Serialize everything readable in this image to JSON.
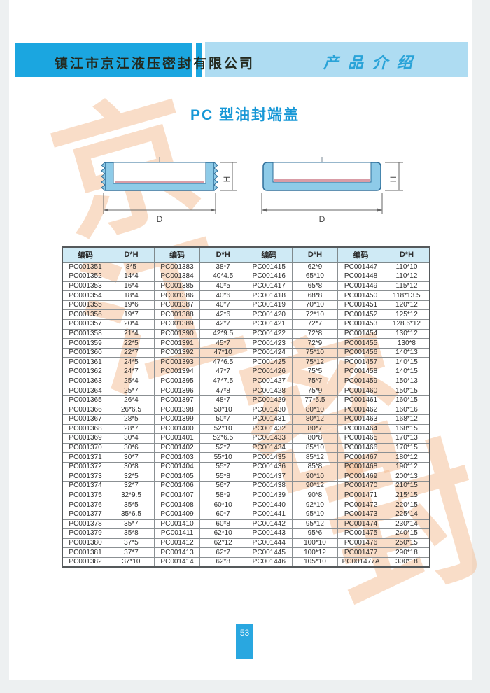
{
  "header": {
    "company": "镇江市京江液压密封有限公司",
    "section": "产品介绍"
  },
  "title": "PC 型油封端盖",
  "watermark": {
    "chars": [
      "京",
      "江",
      "密",
      "封"
    ]
  },
  "diagram": {
    "d_label": "D",
    "h_label": "H"
  },
  "table": {
    "columns": [
      "编码",
      "D*H",
      "编码",
      "D*H",
      "编码",
      "D*H",
      "编码",
      "D*H"
    ],
    "rows": [
      [
        "PC001351",
        "8*5",
        "PC001383",
        "38*7",
        "PC001415",
        "62*9",
        "PC001447",
        "110*10"
      ],
      [
        "PC001352",
        "14*4",
        "PC001384",
        "40*4.5",
        "PC001416",
        "65*10",
        "PC001448",
        "110*12"
      ],
      [
        "PC001353",
        "16*4",
        "PC001385",
        "40*5",
        "PC001417",
        "65*8",
        "PC001449",
        "115*12"
      ],
      [
        "PC001354",
        "18*4",
        "PC001386",
        "40*6",
        "PC001418",
        "68*8",
        "PC001450",
        "118*13.5"
      ],
      [
        "PC001355",
        "19*6",
        "PC001387",
        "40*7",
        "PC001419",
        "70*10",
        "PC001451",
        "120*12"
      ],
      [
        "PC001356",
        "19*7",
        "PC001388",
        "42*6",
        "PC001420",
        "72*10",
        "PC001452",
        "125*12"
      ],
      [
        "PC001357",
        "20*4",
        "PC001389",
        "42*7",
        "PC001421",
        "72*7",
        "PC001453",
        "128.6*12"
      ],
      [
        "PC001358",
        "21*4",
        "PC001390",
        "42*9.5",
        "PC001422",
        "72*8",
        "PC001454",
        "130*12"
      ],
      [
        "PC001359",
        "22*5",
        "PC001391",
        "45*7",
        "PC001423",
        "72*9",
        "PC001455",
        "130*8"
      ],
      [
        "PC001360",
        "22*7",
        "PC001392",
        "47*10",
        "PC001424",
        "75*10",
        "PC001456",
        "140*13"
      ],
      [
        "PC001361",
        "24*5",
        "PC001393",
        "47*6.5",
        "PC001425",
        "75*12",
        "PC001457",
        "140*15"
      ],
      [
        "PC001362",
        "24*7",
        "PC001394",
        "47*7",
        "PC001426",
        "75*5",
        "PC001458",
        "140*15"
      ],
      [
        "PC001363",
        "25*4",
        "PC001395",
        "47*7.5",
        "PC001427",
        "75*7",
        "PC001459",
        "150*13"
      ],
      [
        "PC001364",
        "25*7",
        "PC001396",
        "47*8",
        "PC001428",
        "75*9",
        "PC001460",
        "150*15"
      ],
      [
        "PC001365",
        "26*4",
        "PC001397",
        "48*7",
        "PC001429",
        "77*5.5",
        "PC001461",
        "160*15"
      ],
      [
        "PC001366",
        "26*6.5",
        "PC001398",
        "50*10",
        "PC001430",
        "80*10",
        "PC001462",
        "160*16"
      ],
      [
        "PC001367",
        "28*5",
        "PC001399",
        "50*7",
        "PC001431",
        "80*12",
        "PC001463",
        "168*12"
      ],
      [
        "PC001368",
        "28*7",
        "PC001400",
        "52*10",
        "PC001432",
        "80*7",
        "PC001464",
        "168*15"
      ],
      [
        "PC001369",
        "30*4",
        "PC001401",
        "52*6.5",
        "PC001433",
        "80*8",
        "PC001465",
        "170*13"
      ],
      [
        "PC001370",
        "30*6",
        "PC001402",
        "52*7",
        "PC001434",
        "85*10",
        "PC001466",
        "170*15"
      ],
      [
        "PC001371",
        "30*7",
        "PC001403",
        "55*10",
        "PC001435",
        "85*12",
        "PC001467",
        "180*12"
      ],
      [
        "PC001372",
        "30*8",
        "PC001404",
        "55*7",
        "PC001436",
        "85*8",
        "PC001468",
        "190*12"
      ],
      [
        "PC001373",
        "32*5",
        "PC001405",
        "55*8",
        "PC001437",
        "90*10",
        "PC001469",
        "200*13"
      ],
      [
        "PC001374",
        "32*7",
        "PC001406",
        "56*7",
        "PC001438",
        "90*12",
        "PC001470",
        "210*15"
      ],
      [
        "PC001375",
        "32*9.5",
        "PC001407",
        "58*9",
        "PC001439",
        "90*8",
        "PC001471",
        "215*15"
      ],
      [
        "PC001376",
        "35*5",
        "PC001408",
        "60*10",
        "PC001440",
        "92*10",
        "PC001472",
        "220*15"
      ],
      [
        "PC001377",
        "35*6.5",
        "PC001409",
        "60*7",
        "PC001441",
        "95*10",
        "PC001473",
        "225*14"
      ],
      [
        "PC001378",
        "35*7",
        "PC001410",
        "60*8",
        "PC001442",
        "95*12",
        "PC001474",
        "230*14"
      ],
      [
        "PC001379",
        "35*8",
        "PC001411",
        "62*10",
        "PC001443",
        "95*6",
        "PC001475",
        "240*15"
      ],
      [
        "PC001380",
        "37*5",
        "PC001412",
        "62*12",
        "PC001444",
        "100*10",
        "PC001476",
        "250*15"
      ],
      [
        "PC001381",
        "37*7",
        "PC001413",
        "62*7",
        "PC001445",
        "100*12",
        "PC001477",
        "290*18"
      ],
      [
        "PC001382",
        "37*10",
        "PC001414",
        "62*8",
        "PC001446",
        "105*10",
        "PC001477A",
        "300*18"
      ]
    ]
  },
  "page_number": "53",
  "colors": {
    "header_azure": "#1ba6e0",
    "header_light_blue": "#aedcf2",
    "section_text": "#29a3d8",
    "title_blue": "#1697d6",
    "table_header_bg": "#cfeaf5",
    "watermark_orange": "#f5bd92",
    "page_badge_blue": "#29a7e0"
  }
}
